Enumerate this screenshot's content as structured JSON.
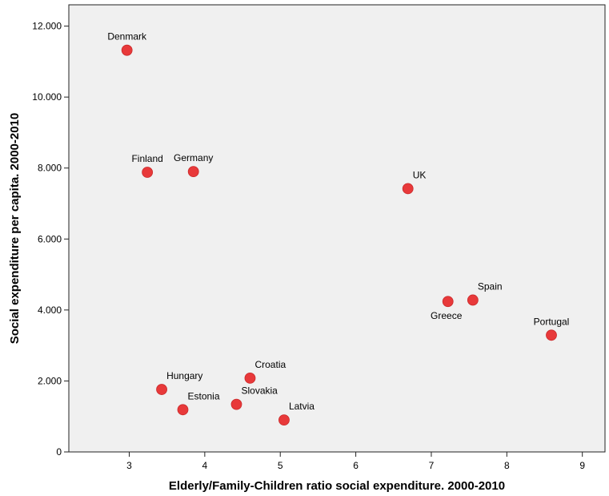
{
  "chart_data": {
    "type": "scatter",
    "title": "",
    "xlabel": "Elderly/Family-Children ratio social expenditure. 2000-2010",
    "ylabel": "Social expenditure per capita. 2000-2010",
    "xlim": [
      2.2,
      9.3
    ],
    "ylim": [
      0,
      12600
    ],
    "x_ticks": [
      3,
      4,
      5,
      6,
      7,
      8,
      9
    ],
    "x_tick_labels": [
      "3",
      "4",
      "5",
      "6",
      "7",
      "8",
      "9"
    ],
    "y_ticks": [
      0,
      2000,
      4000,
      6000,
      8000,
      10000,
      12000
    ],
    "y_tick_labels": [
      "0",
      "2.000",
      "4.000",
      "6.000",
      "8.000",
      "10.000",
      "12.000"
    ],
    "grid": false,
    "plot_background": "#f0f0f0",
    "marker_color": "#e8393a",
    "points": [
      {
        "label": "Denmark",
        "x": 2.97,
        "y": 11320,
        "label_pos": "above"
      },
      {
        "label": "Finland",
        "x": 3.24,
        "y": 7880,
        "label_pos": "above"
      },
      {
        "label": "Germany",
        "x": 3.85,
        "y": 7900,
        "label_pos": "above"
      },
      {
        "label": "UK",
        "x": 6.69,
        "y": 7420,
        "label_pos": "above-right"
      },
      {
        "label": "Spain",
        "x": 7.55,
        "y": 4280,
        "label_pos": "above-right"
      },
      {
        "label": "Greece",
        "x": 7.22,
        "y": 4240,
        "label_pos": "below-left"
      },
      {
        "label": "Portugal",
        "x": 8.59,
        "y": 3290,
        "label_pos": "above"
      },
      {
        "label": "Croatia",
        "x": 4.6,
        "y": 2080,
        "label_pos": "above-right"
      },
      {
        "label": "Hungary",
        "x": 3.43,
        "y": 1760,
        "label_pos": "above-right"
      },
      {
        "label": "Estonia",
        "x": 3.71,
        "y": 1190,
        "label_pos": "above-right"
      },
      {
        "label": "Slovakia",
        "x": 4.42,
        "y": 1340,
        "label_pos": "above-right"
      },
      {
        "label": "Latvia",
        "x": 5.05,
        "y": 900,
        "label_pos": "above-right"
      }
    ]
  }
}
